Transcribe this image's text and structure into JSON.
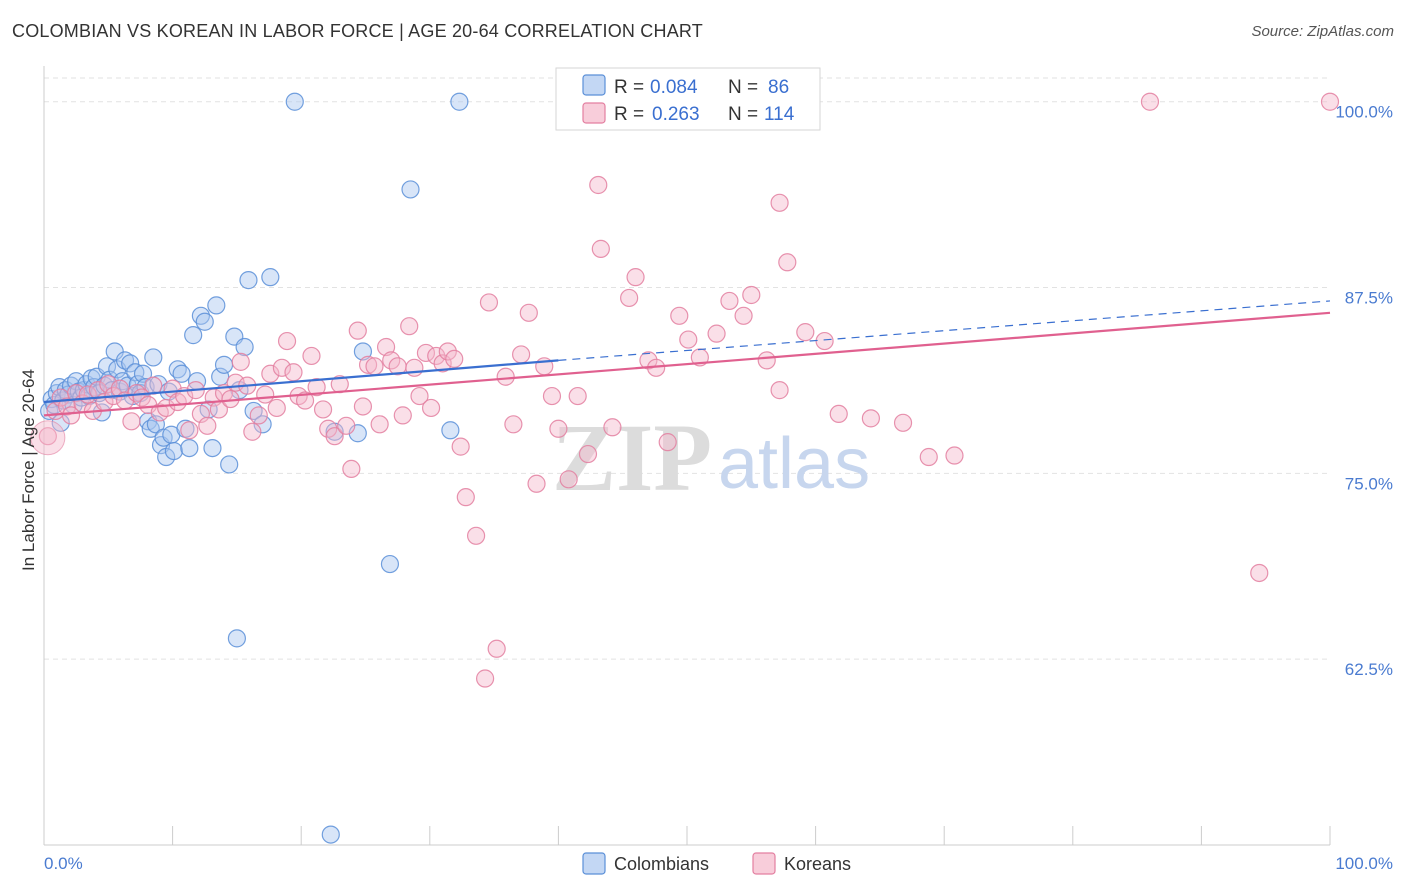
{
  "header": {
    "title": "COLOMBIAN VS KOREAN IN LABOR FORCE | AGE 20-64 CORRELATION CHART",
    "source": "Source: ZipAtlas.com"
  },
  "watermark": {
    "zip": "ZIP",
    "atlas": "atlas"
  },
  "colors": {
    "colombians_fill": "#a9c6f0",
    "colombians_stroke": "#5a8fd8",
    "colombians_line": "#3a6fd0",
    "koreans_fill": "#f5b8cb",
    "koreans_stroke": "#e37fa0",
    "koreans_line": "#e0608f",
    "grid": "#e2e2e2",
    "axis_text": "#4a7bd0"
  },
  "chart_data": {
    "type": "scatter",
    "title": "COLOMBIAN VS KOREAN IN LABOR FORCE | AGE 20-64 CORRELATION CHART",
    "xlabel": "",
    "ylabel": "In Labor Force | Age 20-64",
    "xlim": [
      0,
      100
    ],
    "ylim": [
      50,
      102
    ],
    "x_tick_labels": [
      "0.0%",
      "100.0%"
    ],
    "y_ticks": [
      62.5,
      75.0,
      87.5,
      100.0
    ],
    "y_tick_labels": [
      "62.5%",
      "75.0%",
      "87.5%",
      "100.0%"
    ],
    "grid": true,
    "legend_top": {
      "rows": [
        {
          "r_label": "R =",
          "r_value": "0.084",
          "n_label": "N =",
          "n_value": "86"
        },
        {
          "r_label": "R =",
          "r_value": "0.263",
          "n_label": "N =",
          "n_value": "114"
        }
      ]
    },
    "series": [
      {
        "name": "Colombians",
        "trend": {
          "x0": 0,
          "y0": 79.8,
          "x1": 40,
          "y1": 82.6,
          "dash_x1": 100,
          "dash_y1": 86.6
        },
        "points": [
          [
            0.4,
            79.2
          ],
          [
            0.6,
            80.0
          ],
          [
            0.8,
            79.6
          ],
          [
            1.0,
            80.4
          ],
          [
            1.2,
            80.8
          ],
          [
            1.3,
            78.4
          ],
          [
            1.5,
            79.9
          ],
          [
            1.7,
            80.6
          ],
          [
            1.9,
            80.3
          ],
          [
            2.1,
            80.9
          ],
          [
            2.3,
            79.6
          ],
          [
            2.5,
            81.2
          ],
          [
            2.7,
            80.5
          ],
          [
            2.9,
            80.1
          ],
          [
            3.1,
            80.6
          ],
          [
            3.3,
            81.0
          ],
          [
            3.5,
            80.2
          ],
          [
            3.7,
            81.4
          ],
          [
            3.9,
            80.8
          ],
          [
            4.1,
            81.5
          ],
          [
            4.3,
            80.4
          ],
          [
            4.5,
            79.1
          ],
          [
            4.7,
            80.9
          ],
          [
            4.9,
            82.2
          ],
          [
            5.1,
            81.3
          ],
          [
            5.3,
            80.6
          ],
          [
            5.5,
            83.2
          ],
          [
            5.7,
            82.0
          ],
          [
            5.9,
            80.5
          ],
          [
            6.1,
            81.2
          ],
          [
            6.3,
            82.6
          ],
          [
            6.5,
            80.9
          ],
          [
            6.7,
            82.4
          ],
          [
            6.9,
            80.2
          ],
          [
            7.1,
            81.8
          ],
          [
            7.3,
            81.0
          ],
          [
            7.5,
            80.4
          ],
          [
            7.7,
            81.7
          ],
          [
            7.9,
            80.8
          ],
          [
            8.1,
            78.5
          ],
          [
            8.3,
            78.0
          ],
          [
            8.5,
            82.8
          ],
          [
            8.7,
            78.3
          ],
          [
            8.9,
            81.0
          ],
          [
            9.1,
            76.9
          ],
          [
            9.3,
            77.4
          ],
          [
            9.5,
            76.1
          ],
          [
            9.7,
            80.5
          ],
          [
            9.9,
            77.6
          ],
          [
            10.1,
            76.5
          ],
          [
            10.4,
            82.0
          ],
          [
            10.7,
            81.7
          ],
          [
            11.0,
            78.0
          ],
          [
            11.3,
            76.7
          ],
          [
            11.6,
            84.3
          ],
          [
            11.9,
            81.2
          ],
          [
            12.2,
            85.6
          ],
          [
            12.5,
            85.2
          ],
          [
            12.8,
            79.3
          ],
          [
            13.1,
            76.7
          ],
          [
            13.4,
            86.3
          ],
          [
            13.7,
            81.5
          ],
          [
            14.0,
            82.3
          ],
          [
            14.4,
            75.6
          ],
          [
            14.8,
            84.2
          ],
          [
            15.2,
            80.6
          ],
          [
            15.6,
            83.5
          ],
          [
            15.9,
            88.0
          ],
          [
            16.3,
            79.2
          ],
          [
            17.0,
            78.3
          ],
          [
            17.6,
            88.2
          ],
          [
            19.5,
            100.0
          ],
          [
            22.3,
            50.7
          ],
          [
            22.6,
            77.8
          ],
          [
            24.4,
            77.7
          ],
          [
            24.8,
            83.2
          ],
          [
            26.9,
            68.9
          ],
          [
            28.5,
            94.1
          ],
          [
            31.6,
            77.9
          ],
          [
            32.3,
            100.0
          ],
          [
            15.0,
            63.9
          ]
        ]
      },
      {
        "name": "Koreans",
        "trend": {
          "x0": 0,
          "y0": 78.9,
          "x1": 100,
          "y1": 85.8
        },
        "points": [
          [
            0.3,
            77.5
          ],
          [
            0.9,
            79.2
          ],
          [
            1.3,
            80.1
          ],
          [
            1.8,
            79.5
          ],
          [
            2.1,
            78.9
          ],
          [
            2.5,
            80.4
          ],
          [
            3.0,
            79.7
          ],
          [
            3.4,
            80.3
          ],
          [
            3.8,
            79.2
          ],
          [
            4.2,
            80.6
          ],
          [
            4.7,
            79.8
          ],
          [
            5.0,
            81.0
          ],
          [
            5.4,
            80.2
          ],
          [
            5.9,
            80.7
          ],
          [
            6.3,
            79.9
          ],
          [
            6.8,
            78.5
          ],
          [
            7.2,
            80.4
          ],
          [
            7.6,
            80.1
          ],
          [
            8.1,
            79.6
          ],
          [
            8.5,
            80.9
          ],
          [
            9.0,
            79.1
          ],
          [
            9.5,
            79.4
          ],
          [
            10.0,
            80.7
          ],
          [
            10.4,
            79.8
          ],
          [
            10.9,
            80.2
          ],
          [
            11.3,
            77.9
          ],
          [
            11.8,
            80.6
          ],
          [
            12.2,
            79.0
          ],
          [
            12.7,
            78.2
          ],
          [
            13.2,
            80.1
          ],
          [
            13.6,
            79.3
          ],
          [
            14.0,
            80.4
          ],
          [
            14.5,
            80.0
          ],
          [
            14.9,
            81.1
          ],
          [
            15.3,
            82.5
          ],
          [
            15.8,
            80.9
          ],
          [
            16.2,
            77.8
          ],
          [
            16.7,
            78.9
          ],
          [
            17.2,
            80.3
          ],
          [
            17.6,
            81.7
          ],
          [
            18.1,
            79.4
          ],
          [
            18.5,
            82.1
          ],
          [
            18.9,
            83.9
          ],
          [
            19.4,
            81.8
          ],
          [
            19.8,
            80.2
          ],
          [
            20.3,
            79.9
          ],
          [
            20.8,
            82.9
          ],
          [
            21.2,
            80.8
          ],
          [
            21.7,
            79.3
          ],
          [
            22.1,
            78.0
          ],
          [
            22.6,
            77.5
          ],
          [
            23.0,
            81.0
          ],
          [
            23.5,
            78.2
          ],
          [
            23.9,
            75.3
          ],
          [
            24.4,
            84.6
          ],
          [
            24.8,
            79.5
          ],
          [
            25.2,
            82.3
          ],
          [
            25.7,
            82.2
          ],
          [
            26.1,
            78.3
          ],
          [
            26.6,
            83.5
          ],
          [
            27.0,
            82.6
          ],
          [
            27.5,
            82.2
          ],
          [
            27.9,
            78.9
          ],
          [
            28.4,
            84.9
          ],
          [
            28.8,
            82.1
          ],
          [
            29.2,
            80.2
          ],
          [
            29.7,
            83.1
          ],
          [
            30.1,
            79.4
          ],
          [
            30.5,
            82.9
          ],
          [
            31.0,
            82.4
          ],
          [
            31.4,
            83.2
          ],
          [
            31.9,
            82.7
          ],
          [
            32.4,
            76.8
          ],
          [
            32.8,
            73.4
          ],
          [
            33.6,
            70.8
          ],
          [
            34.3,
            61.2
          ],
          [
            34.6,
            86.5
          ],
          [
            35.2,
            63.2
          ],
          [
            35.9,
            81.5
          ],
          [
            36.5,
            78.3
          ],
          [
            37.1,
            83.0
          ],
          [
            37.7,
            85.8
          ],
          [
            38.3,
            74.3
          ],
          [
            38.9,
            82.2
          ],
          [
            39.5,
            80.2
          ],
          [
            40.0,
            78.0
          ],
          [
            40.8,
            74.6
          ],
          [
            41.5,
            80.2
          ],
          [
            42.3,
            76.3
          ],
          [
            43.3,
            90.1
          ],
          [
            44.2,
            78.1
          ],
          [
            45.5,
            86.8
          ],
          [
            46.0,
            88.2
          ],
          [
            47.0,
            82.6
          ],
          [
            47.6,
            82.1
          ],
          [
            48.5,
            77.1
          ],
          [
            49.4,
            85.6
          ],
          [
            50.1,
            84.0
          ],
          [
            51.0,
            82.8
          ],
          [
            52.3,
            84.4
          ],
          [
            53.3,
            86.6
          ],
          [
            54.4,
            85.6
          ],
          [
            55.0,
            87.0
          ],
          [
            56.2,
            82.6
          ],
          [
            57.2,
            80.6
          ],
          [
            57.8,
            89.2
          ],
          [
            59.2,
            84.5
          ],
          [
            60.7,
            83.9
          ],
          [
            61.8,
            79.0
          ],
          [
            64.3,
            78.7
          ],
          [
            66.8,
            78.4
          ],
          [
            68.8,
            76.1
          ],
          [
            70.8,
            76.2
          ],
          [
            43.1,
            94.4
          ],
          [
            57.2,
            93.2
          ],
          [
            86.0,
            100.0
          ],
          [
            94.5,
            68.3
          ],
          [
            100.0,
            100.0
          ]
        ]
      }
    ],
    "legend_bottom": [
      "Colombians",
      "Koreans"
    ]
  }
}
